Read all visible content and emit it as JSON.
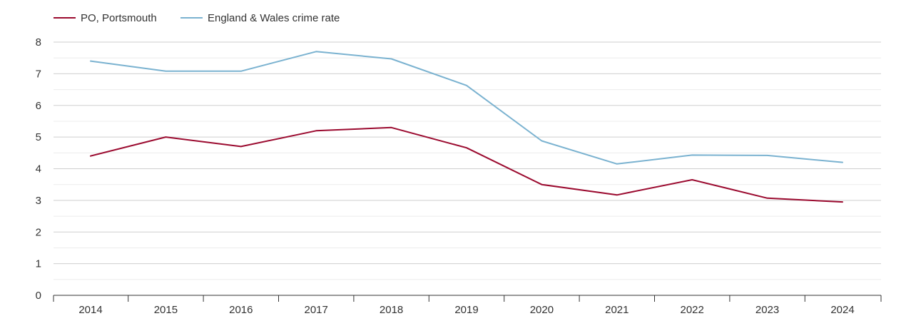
{
  "chart_data": {
    "type": "line",
    "title": "",
    "xlabel": "",
    "ylabel": "",
    "categories": [
      "2014",
      "2015",
      "2016",
      "2017",
      "2018",
      "2019",
      "2020",
      "2021",
      "2022",
      "2023",
      "2024"
    ],
    "y_ticks": [
      "0",
      "1",
      "2",
      "3",
      "4",
      "5",
      "6",
      "7",
      "8"
    ],
    "ylim": [
      0,
      8
    ],
    "grid": true,
    "minor_grid": true,
    "legend_position": "top-left",
    "series": [
      {
        "name": "PO, Portsmouth",
        "color": "#9b0a2f",
        "values": [
          4.4,
          5.0,
          4.7,
          5.2,
          5.3,
          4.66,
          3.5,
          3.17,
          3.65,
          3.07,
          2.95
        ]
      },
      {
        "name": "England & Wales crime rate",
        "color": "#7ab2d0",
        "values": [
          7.4,
          7.08,
          7.08,
          7.7,
          7.47,
          6.63,
          4.88,
          4.15,
          4.43,
          4.42,
          4.2
        ]
      }
    ]
  }
}
